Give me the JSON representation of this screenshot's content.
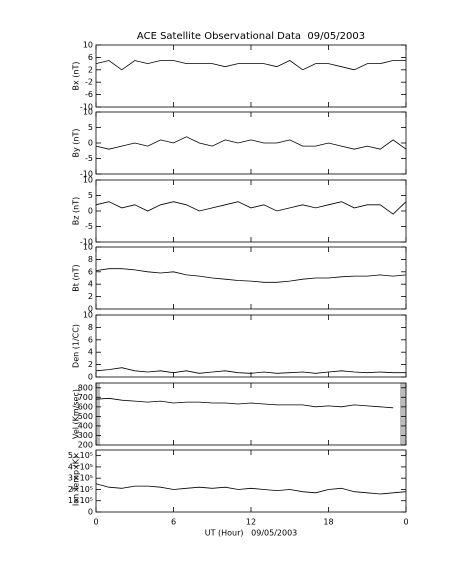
{
  "chart_data": [
    {
      "type": "line",
      "title": "ACE Satellite Observational Data  09/05/2003",
      "ylabel": "Bx (nT)",
      "color": "#000000",
      "x": [
        0,
        1,
        2,
        3,
        4,
        5,
        6,
        7,
        8,
        9,
        10,
        11,
        12,
        13,
        14,
        15,
        16,
        17,
        18,
        19,
        20,
        21,
        22,
        23,
        24
      ],
      "values": [
        4,
        5,
        2,
        5,
        4,
        5,
        5,
        4,
        4,
        4,
        3,
        4,
        4,
        4,
        3,
        5,
        2,
        4,
        4,
        3,
        2,
        4,
        4,
        5,
        5
      ],
      "xlim": [
        0,
        24
      ],
      "xticks": [
        0,
        6,
        12,
        18,
        {
          "value": 24,
          "label": "0"
        }
      ],
      "ylim": [
        -10,
        10
      ],
      "yticks": [
        -10,
        -6,
        -2,
        2,
        6,
        10
      ]
    },
    {
      "type": "line",
      "ylabel": "By (nT)",
      "color": "#000000",
      "x": [
        0,
        1,
        2,
        3,
        4,
        5,
        6,
        7,
        8,
        9,
        10,
        11,
        12,
        13,
        14,
        15,
        16,
        17,
        18,
        19,
        20,
        21,
        22,
        23,
        24
      ],
      "values": [
        -1,
        -2,
        -1,
        0,
        -1,
        1,
        0,
        2,
        0,
        -1,
        1,
        0,
        1,
        0,
        0,
        1,
        -1,
        -1,
        0,
        -1,
        -2,
        -1,
        -2,
        1,
        -2
      ],
      "xlim": [
        0,
        24
      ],
      "xticks": [
        0,
        6,
        12,
        18,
        {
          "value": 24,
          "label": "0"
        }
      ],
      "ylim": [
        -10,
        10
      ],
      "yticks": [
        -10,
        -5,
        0,
        5,
        10
      ]
    },
    {
      "type": "line",
      "ylabel": "Bz (nT)",
      "color": "#000000",
      "x": [
        0,
        1,
        2,
        3,
        4,
        5,
        6,
        7,
        8,
        9,
        10,
        11,
        12,
        13,
        14,
        15,
        16,
        17,
        18,
        19,
        20,
        21,
        22,
        23,
        24
      ],
      "values": [
        2,
        3,
        1,
        2,
        0,
        2,
        3,
        2,
        0,
        1,
        2,
        3,
        1,
        2,
        0,
        1,
        2,
        1,
        2,
        3,
        1,
        2,
        2,
        -1,
        3
      ],
      "xlim": [
        0,
        24
      ],
      "xticks": [
        0,
        6,
        12,
        18,
        {
          "value": 24,
          "label": "0"
        }
      ],
      "ylim": [
        -10,
        10
      ],
      "yticks": [
        -10,
        -5,
        0,
        5,
        10
      ]
    },
    {
      "type": "line",
      "ylabel": "Bt (nT)",
      "color": "#000000",
      "x": [
        0,
        1,
        2,
        3,
        4,
        5,
        6,
        7,
        8,
        9,
        10,
        11,
        12,
        13,
        14,
        15,
        16,
        17,
        18,
        19,
        20,
        21,
        22,
        23,
        24
      ],
      "values": [
        6.2,
        6.5,
        6.5,
        6.3,
        6,
        5.8,
        6,
        5.5,
        5.3,
        5,
        4.8,
        4.6,
        4.5,
        4.3,
        4.3,
        4.5,
        4.8,
        5,
        5,
        5.2,
        5.3,
        5.3,
        5.5,
        5.3,
        5.5
      ],
      "xlim": [
        0,
        24
      ],
      "xticks": [
        0,
        6,
        12,
        18,
        {
          "value": 24,
          "label": "0"
        }
      ],
      "ylim": [
        0,
        10
      ],
      "yticks": [
        0,
        2,
        4,
        6,
        8,
        10
      ]
    },
    {
      "type": "line",
      "ylabel": "Den (1/CC)",
      "color": "#000000",
      "x": [
        0,
        1,
        2,
        3,
        4,
        5,
        6,
        7,
        8,
        9,
        10,
        11,
        12,
        13,
        14,
        15,
        16,
        17,
        18,
        19,
        20,
        21,
        22,
        23,
        24
      ],
      "values": [
        1,
        1.2,
        1.5,
        1,
        0.8,
        1,
        0.7,
        1,
        0.6,
        0.8,
        1,
        0.7,
        0.6,
        0.8,
        0.6,
        0.7,
        0.8,
        0.6,
        0.8,
        1,
        0.8,
        0.7,
        0.8,
        0.7,
        0.7
      ],
      "xlim": [
        0,
        24
      ],
      "xticks": [
        0,
        6,
        12,
        18,
        {
          "value": 24,
          "label": "0"
        }
      ],
      "ylim": [
        0,
        10
      ],
      "yticks": [
        0,
        2,
        4,
        6,
        8,
        10
      ]
    },
    {
      "type": "line",
      "ylabel": "Vel (Km/sec)",
      "color": "#000000",
      "x": [
        0,
        1,
        2,
        3,
        4,
        5,
        6,
        7,
        8,
        9,
        10,
        11,
        12,
        13,
        14,
        15,
        16,
        17,
        18,
        19,
        20,
        21,
        22,
        23,
        24
      ],
      "values": [
        680,
        690,
        670,
        660,
        650,
        660,
        640,
        650,
        650,
        640,
        640,
        630,
        640,
        630,
        620,
        620,
        620,
        600,
        610,
        600,
        620,
        610,
        600,
        590,
        null
      ],
      "xlim": [
        0,
        24
      ],
      "xticks": [
        0,
        6,
        12,
        18,
        {
          "value": 24,
          "label": "0"
        }
      ],
      "ylim": [
        200,
        850
      ],
      "yticks": [
        200,
        300,
        400,
        500,
        600,
        700,
        800
      ]
    },
    {
      "type": "line",
      "ylabel": "Ion Temp (K)",
      "xlabel": "UT (Hour)   09/05/2003",
      "color": "#000000",
      "x": [
        0,
        1,
        2,
        3,
        4,
        5,
        6,
        7,
        8,
        9,
        10,
        11,
        12,
        13,
        14,
        15,
        16,
        17,
        18,
        19,
        20,
        21,
        22,
        23,
        24
      ],
      "values": [
        250000,
        220000,
        210000,
        230000,
        230000,
        220000,
        200000,
        210000,
        220000,
        210000,
        220000,
        200000,
        210000,
        200000,
        190000,
        200000,
        180000,
        170000,
        200000,
        210000,
        180000,
        170000,
        160000,
        170000,
        180000
      ],
      "xlim": [
        0,
        24
      ],
      "xticks": [
        0,
        6,
        12,
        18,
        {
          "value": 24,
          "label": "0"
        }
      ],
      "ylim": [
        0,
        550000
      ],
      "yticks": [
        0,
        {
          "value": 100000,
          "label": "1×10⁵"
        },
        {
          "value": 200000,
          "label": "2×10⁵"
        },
        {
          "value": 300000,
          "label": "3×10⁵"
        },
        {
          "value": 400000,
          "label": "4×10⁵"
        },
        {
          "value": 500000,
          "label": "5×10⁵"
        }
      ]
    }
  ]
}
